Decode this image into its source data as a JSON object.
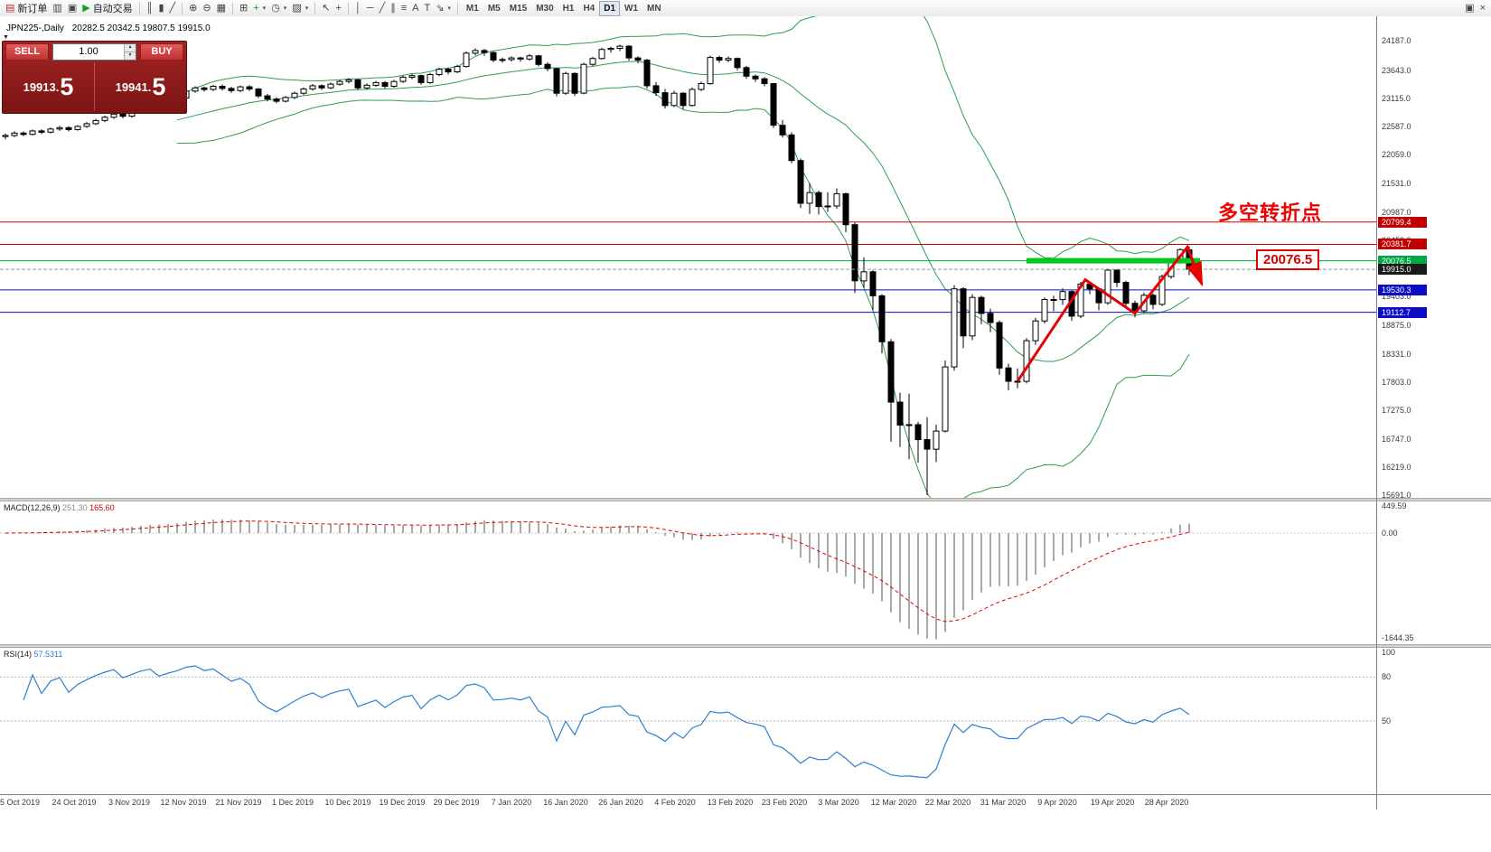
{
  "toolbar": {
    "active_timeframe": "D1",
    "items": [
      {
        "name": "new-order-button",
        "glyph": "▤",
        "glyph_color": "#b03030",
        "label": "新订单"
      },
      {
        "name": "charts-window-button",
        "glyph": "▥"
      },
      {
        "name": "profiles-button",
        "glyph": "▣"
      },
      {
        "name": "autotrading-button",
        "glyph": "▶",
        "glyph_color": "#1f9e1f",
        "label": "自动交易"
      },
      {
        "sep": true
      },
      {
        "name": "bar-chart-button",
        "glyph": "║"
      },
      {
        "name": "candlestick-chart-button",
        "glyph": "▮"
      },
      {
        "name": "line-chart-button",
        "glyph": "╱"
      },
      {
        "sep": true
      },
      {
        "name": "zoom-in-button",
        "glyph": "⊕"
      },
      {
        "name": "zoom-out-button",
        "glyph": "⊖"
      },
      {
        "name": "auto-scroll-button",
        "glyph": "▦"
      },
      {
        "sep": true
      },
      {
        "name": "tile-windows-button",
        "glyph": "⊞"
      },
      {
        "name": "indicators-button",
        "glyph": "+",
        "glyph_color": "#1f9e1f",
        "caret": true
      },
      {
        "name": "periods-button",
        "glyph": "◷",
        "caret": true
      },
      {
        "name": "templates-button",
        "glyph": "▨",
        "caret": true
      },
      {
        "sep": true
      },
      {
        "name": "cursor-button",
        "glyph": "↖"
      },
      {
        "name": "crosshair-button",
        "glyph": "+"
      },
      {
        "sep": true
      },
      {
        "name": "vertical-line-button",
        "glyph": "│"
      },
      {
        "name": "horizontal-line-button",
        "glyph": "─"
      },
      {
        "name": "trendline-button",
        "glyph": "╱"
      },
      {
        "name": "channel-button",
        "glyph": "∥"
      },
      {
        "name": "fibonacci-button",
        "glyph": "≡"
      },
      {
        "name": "text-button",
        "glyph": "A"
      },
      {
        "name": "label-button",
        "glyph": "T"
      },
      {
        "name": "arrows-button",
        "glyph": "⇘",
        "caret": true
      },
      {
        "sep": true
      },
      {
        "name": "timeframe-m1",
        "tf": "M1"
      },
      {
        "name": "timeframe-m5",
        "tf": "M5"
      },
      {
        "name": "timeframe-m15",
        "tf": "M15"
      },
      {
        "name": "timeframe-m30",
        "tf": "M30"
      },
      {
        "name": "timeframe-h1",
        "tf": "H1"
      },
      {
        "name": "timeframe-h4",
        "tf": "H4"
      },
      {
        "name": "timeframe-d1",
        "tf": "D1"
      },
      {
        "name": "timeframe-w1",
        "tf": "W1"
      },
      {
        "name": "timeframe-mn",
        "tf": "MN"
      }
    ],
    "right_items": [
      {
        "name": "window-restore-button",
        "glyph": "▣"
      },
      {
        "name": "window-close-button",
        "glyph": "×"
      }
    ]
  },
  "chart": {
    "title_symbol": "JPN225-,Daily",
    "title_ohlc": "20282.5 20342.5 19807.5 19915.0",
    "bollinger_color": "#2e9e4f"
  },
  "trade_panel": {
    "sell_label": "SELL",
    "buy_label": "BUY",
    "volume": "1.00",
    "sell_price_small": "19913.",
    "sell_price_big": "5",
    "buy_price_small": "19941.",
    "buy_price_big": "5"
  },
  "price_axis": {
    "ticks": [
      24187.0,
      23643.0,
      23115.0,
      22587.0,
      22059.0,
      21531.0,
      20987.0,
      20459.0,
      19931.0,
      19403.0,
      18875.0,
      18331.0,
      17803.0,
      17275.0,
      16747.0,
      16219.0,
      15691.0
    ]
  },
  "levels": [
    {
      "price": 20799.4,
      "tag": "20799.4",
      "color": "#d40000",
      "tag_bg": "#c00000"
    },
    {
      "price": 20381.7,
      "tag": "20381.7",
      "color": "#d40000",
      "tag_bg": "#c00000"
    },
    {
      "price": 20076.5,
      "tag": "20076.5",
      "color": "#00a843",
      "tag_bg": "#00a843"
    },
    {
      "price": 19530.3,
      "tag": "19530.3",
      "color": "#0c0cc8",
      "tag_bg": "#0c0cc8"
    },
    {
      "price": 19112.7,
      "tag": "19112.7",
      "color": "#0c0cc8",
      "tag_bg": "#0c0cc8"
    }
  ],
  "current_price": {
    "price": 19915.0,
    "tag": "19915.0",
    "tag_bg": "#1a1a1a"
  },
  "annotations": {
    "turning_point_text": "多空转折点",
    "level_box_text": "20076.5",
    "green_bar": {
      "price": 20076.5,
      "from_bar": 113,
      "to_bar": 132.2,
      "color": "#00c81e"
    },
    "zigzag": {
      "color": "#e80000",
      "points": [
        [
          112,
          17820
        ],
        [
          119.5,
          19720
        ],
        [
          125,
          19090
        ],
        [
          130.8,
          20330
        ],
        [
          132.4,
          19640
        ]
      ]
    }
  },
  "macd": {
    "label": "MACD(12,26,9)",
    "value_main": "251.30",
    "value_signal": "165.60",
    "scale": [
      "449.59",
      "0.00",
      "-1644.35"
    ]
  },
  "rsi": {
    "label": "RSI(14)",
    "value": "57.5311",
    "scale": [
      "100",
      "80",
      "50"
    ]
  },
  "date_axis": {
    "labels": [
      "5 Oct 2019",
      "24 Oct 2019",
      "3 Nov 2019",
      "12 Nov 2019",
      "21 Nov 2019",
      "1 Dec 2019",
      "10 Dec 2019",
      "19 Dec 2019",
      "29 Dec 2019",
      "7 Jan 2020",
      "16 Jan 2020",
      "26 Jan 2020",
      "4 Feb 2020",
      "13 Feb 2020",
      "23 Feb 2020",
      "3 Mar 2020",
      "12 Mar 2020",
      "22 Mar 2020",
      "31 Mar 2020",
      "9 Apr 2020",
      "19 Apr 2020",
      "28 Apr 2020"
    ]
  },
  "chart_data": {
    "type": "candlestick",
    "symbol": "JPN225-",
    "timeframe": "Daily",
    "title": "JPN225-,Daily 20282.5 20342.5 19807.5 19915.0",
    "last_ohlc": {
      "open": 20282.5,
      "high": 20342.5,
      "low": 19807.5,
      "close": 19915.0
    },
    "ylim": [
      15640,
      24650
    ],
    "bars": [
      [
        22400,
        22455,
        22350,
        22420
      ],
      [
        22420,
        22500,
        22390,
        22465
      ],
      [
        22465,
        22495,
        22405,
        22440
      ],
      [
        22440,
        22530,
        22420,
        22505
      ],
      [
        22505,
        22535,
        22445,
        22480
      ],
      [
        22480,
        22565,
        22460,
        22540
      ],
      [
        22540,
        22600,
        22505,
        22565
      ],
      [
        22565,
        22595,
        22495,
        22530
      ],
      [
        22530,
        22615,
        22510,
        22590
      ],
      [
        22590,
        22670,
        22560,
        22640
      ],
      [
        22640,
        22730,
        22615,
        22700
      ],
      [
        22700,
        22790,
        22670,
        22760
      ],
      [
        22760,
        22850,
        22730,
        22820
      ],
      [
        22820,
        22845,
        22740,
        22780
      ],
      [
        22780,
        22885,
        22755,
        22860
      ],
      [
        22860,
        22975,
        22840,
        22950
      ],
      [
        22950,
        23040,
        22920,
        23010
      ],
      [
        23010,
        23035,
        22930,
        22970
      ],
      [
        22970,
        23075,
        22945,
        23050
      ],
      [
        23050,
        23150,
        23020,
        23120
      ],
      [
        23120,
        23280,
        23100,
        23250
      ],
      [
        23250,
        23340,
        23220,
        23310
      ],
      [
        23310,
        23335,
        23240,
        23280
      ],
      [
        23280,
        23365,
        23250,
        23340
      ],
      [
        23340,
        23370,
        23260,
        23300
      ],
      [
        23300,
        23330,
        23215,
        23260
      ],
      [
        23260,
        23355,
        23230,
        23330
      ],
      [
        23330,
        23360,
        23250,
        23290
      ],
      [
        23290,
        23310,
        23120,
        23160
      ],
      [
        23160,
        23200,
        23060,
        23100
      ],
      [
        23100,
        23135,
        23020,
        23060
      ],
      [
        23060,
        23160,
        23035,
        23130
      ],
      [
        23130,
        23240,
        23100,
        23210
      ],
      [
        23210,
        23320,
        23180,
        23290
      ],
      [
        23290,
        23380,
        23260,
        23350
      ],
      [
        23350,
        23375,
        23270,
        23310
      ],
      [
        23310,
        23410,
        23285,
        23380
      ],
      [
        23380,
        23460,
        23350,
        23430
      ],
      [
        23430,
        23490,
        23395,
        23460
      ],
      [
        23460,
        23480,
        23270,
        23310
      ],
      [
        23310,
        23395,
        23280,
        23360
      ],
      [
        23360,
        23440,
        23330,
        23410
      ],
      [
        23410,
        23435,
        23300,
        23340
      ],
      [
        23340,
        23460,
        23315,
        23430
      ],
      [
        23430,
        23540,
        23400,
        23510
      ],
      [
        23510,
        23570,
        23470,
        23540
      ],
      [
        23540,
        23560,
        23370,
        23410
      ],
      [
        23410,
        23590,
        23385,
        23560
      ],
      [
        23560,
        23690,
        23530,
        23660
      ],
      [
        23660,
        23685,
        23560,
        23610
      ],
      [
        23610,
        23740,
        23585,
        23710
      ],
      [
        23710,
        23990,
        23690,
        23960
      ],
      [
        23960,
        24050,
        23920,
        24010
      ],
      [
        24010,
        24040,
        23910,
        23970
      ],
      [
        23970,
        23995,
        23790,
        23830
      ],
      [
        23830,
        23875,
        23780,
        23840
      ],
      [
        23840,
        23900,
        23805,
        23870
      ],
      [
        23870,
        23895,
        23800,
        23850
      ],
      [
        23850,
        23945,
        23820,
        23910
      ],
      [
        23910,
        23930,
        23710,
        23750
      ],
      [
        23750,
        23790,
        23620,
        23670
      ],
      [
        23670,
        23690,
        23150,
        23210
      ],
      [
        23210,
        23610,
        23180,
        23580
      ],
      [
        23580,
        23600,
        23160,
        23210
      ],
      [
        23210,
        23780,
        23190,
        23750
      ],
      [
        23750,
        23890,
        23720,
        23860
      ],
      [
        23860,
        24060,
        23840,
        24030
      ],
      [
        24030,
        24080,
        23970,
        24050
      ],
      [
        24050,
        24120,
        24000,
        24090
      ],
      [
        24090,
        24110,
        23820,
        23870
      ],
      [
        23870,
        23900,
        23770,
        23830
      ],
      [
        23830,
        23850,
        23300,
        23350
      ],
      [
        23350,
        23420,
        23160,
        23220
      ],
      [
        23220,
        23290,
        22920,
        22980
      ],
      [
        22980,
        23260,
        22950,
        23210
      ],
      [
        23210,
        23230,
        22910,
        22980
      ],
      [
        22980,
        23320,
        22960,
        23280
      ],
      [
        23280,
        23430,
        23250,
        23390
      ],
      [
        23390,
        23910,
        23370,
        23880
      ],
      [
        23880,
        23910,
        23780,
        23830
      ],
      [
        23830,
        23900,
        23790,
        23860
      ],
      [
        23860,
        23880,
        23640,
        23690
      ],
      [
        23690,
        23720,
        23480,
        23530
      ],
      [
        23530,
        23560,
        23420,
        23480
      ],
      [
        23480,
        23510,
        23340,
        23390
      ],
      [
        23390,
        23400,
        22560,
        22610
      ],
      [
        22610,
        22710,
        22380,
        22430
      ],
      [
        22430,
        22480,
        21900,
        21950
      ],
      [
        21950,
        21990,
        21060,
        21150
      ],
      [
        21150,
        21530,
        20950,
        21350
      ],
      [
        21350,
        21390,
        20940,
        21090
      ],
      [
        21090,
        21360,
        20990,
        21100
      ],
      [
        21100,
        21430,
        21050,
        21330
      ],
      [
        21330,
        21350,
        20610,
        20750
      ],
      [
        20750,
        20790,
        19470,
        19700
      ],
      [
        19700,
        20140,
        19570,
        19870
      ],
      [
        19870,
        19900,
        19150,
        19420
      ],
      [
        19420,
        19450,
        18340,
        18560
      ],
      [
        18560,
        18610,
        16690,
        17430
      ],
      [
        17430,
        17610,
        16590,
        17000
      ],
      [
        17000,
        17590,
        16360,
        17010
      ],
      [
        17010,
        17060,
        16300,
        16730
      ],
      [
        16730,
        17150,
        15690,
        16550
      ],
      [
        16550,
        17010,
        16310,
        16890
      ],
      [
        16890,
        18210,
        16860,
        18090
      ],
      [
        18090,
        19620,
        18020,
        19550
      ],
      [
        19550,
        19580,
        18440,
        18670
      ],
      [
        18670,
        19450,
        18590,
        19390
      ],
      [
        19390,
        19420,
        18890,
        19090
      ],
      [
        19090,
        19180,
        18740,
        18920
      ],
      [
        18920,
        18960,
        17940,
        18070
      ],
      [
        18070,
        18150,
        17650,
        17820
      ],
      [
        17820,
        18060,
        17690,
        17820
      ],
      [
        17820,
        18630,
        17780,
        18580
      ],
      [
        18580,
        19010,
        18500,
        18950
      ],
      [
        18950,
        19390,
        18900,
        19350
      ],
      [
        19350,
        19420,
        19130,
        19350
      ],
      [
        19350,
        19560,
        19250,
        19500
      ],
      [
        19500,
        19520,
        18950,
        19040
      ],
      [
        19040,
        19680,
        19000,
        19640
      ],
      [
        19640,
        19670,
        19450,
        19550
      ],
      [
        19550,
        19580,
        19150,
        19290
      ],
      [
        19290,
        19930,
        19250,
        19900
      ],
      [
        19900,
        19920,
        19580,
        19670
      ],
      [
        19670,
        19700,
        19180,
        19280
      ],
      [
        19280,
        19330,
        19020,
        19140
      ],
      [
        19140,
        19480,
        19100,
        19430
      ],
      [
        19430,
        19460,
        19170,
        19260
      ],
      [
        19260,
        19820,
        19230,
        19780
      ],
      [
        19780,
        20110,
        19740,
        20060
      ],
      [
        20060,
        20310,
        20020,
        20283
      ],
      [
        20282.5,
        20342.5,
        19807.5,
        19915
      ]
    ]
  }
}
